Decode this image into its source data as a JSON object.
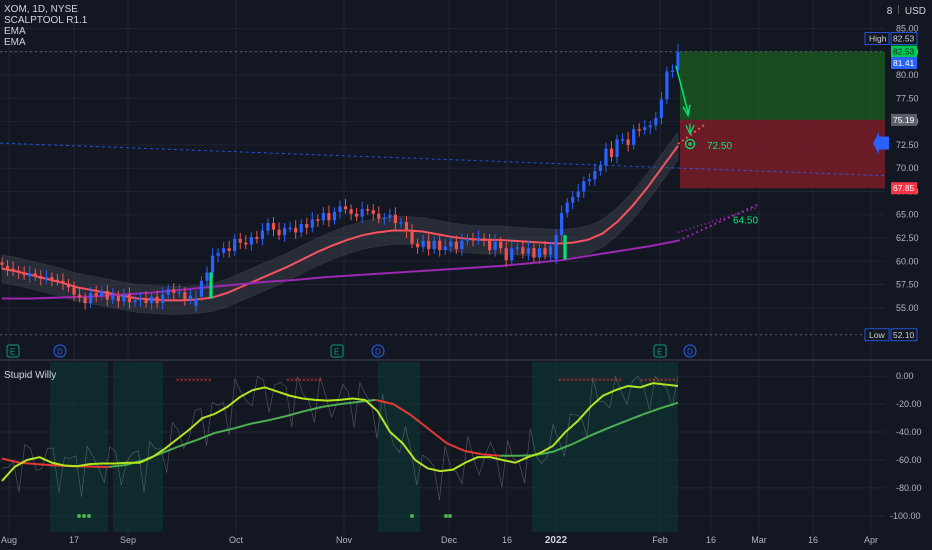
{
  "legend": {
    "symbol": "XOM, 1D, NYSE",
    "indicators": [
      "SCALPTOOL R1.1",
      "EMA",
      "EMA"
    ],
    "lower_title": "Stupid Willy"
  },
  "header_right": {
    "currency_num": "8",
    "currency": "USD"
  },
  "colors": {
    "bg": "#131722",
    "up": "#2962ff",
    "down": "#ef5350",
    "neutral": "#787b86",
    "ema_fast": "#f7525f",
    "ema_slow": "#9c27b0",
    "signal_green": "#00e676",
    "target_zone": "#1b5e20",
    "stop_zone": "#7f1d28"
  },
  "price_axis": {
    "ticks": [
      "85.00",
      "82.50",
      "80.00",
      "77.50",
      "75.00",
      "72.50",
      "70.00",
      "67.50",
      "65.00",
      "62.50",
      "60.00",
      "57.50",
      "55.00"
    ]
  },
  "osc_axis": {
    "ticks": [
      "0.00",
      "-20.00",
      "-40.00",
      "-60.00",
      "-80.00",
      "-100.00"
    ]
  },
  "time_axis": {
    "ticks": [
      "Aug",
      "17",
      "Sep",
      "Oct",
      "Nov",
      "Dec",
      "16",
      "2022",
      "Feb",
      "16",
      "Mar",
      "16",
      "Apr"
    ]
  },
  "price_labels": [
    {
      "text": "High",
      "value": "82.53",
      "style": "outline"
    },
    {
      "text": "",
      "value": "82.53",
      "style": "green"
    },
    {
      "text": "",
      "value": "81.41",
      "style": "blue"
    },
    {
      "text": "",
      "value": "75.19",
      "style": "gray"
    },
    {
      "text": "",
      "value": "67.85",
      "style": "red"
    },
    {
      "text": "Low",
      "value": "52.10",
      "style": "outline"
    }
  ],
  "annotations": [
    {
      "text": "72.50",
      "color": "#00e676"
    },
    {
      "text": "64.50",
      "color": "#00e676"
    }
  ],
  "event_markers": [
    "E",
    "D",
    "E",
    "D",
    "E",
    "D"
  ],
  "chart_data": {
    "type": "candlestick",
    "ylim": [
      51,
      87
    ],
    "osc_ylim": [
      -103,
      3
    ],
    "candles": {
      "close": [
        59.6,
        59.1,
        58.9,
        58.8,
        58.5,
        58.7,
        58.4,
        58.1,
        58.3,
        58.0,
        57.9,
        57.6,
        57.2,
        56.4,
        56.1,
        55.5,
        56.6,
        56.3,
        56.8,
        55.9,
        56.3,
        55.7,
        56.4,
        55.6,
        55.8,
        56.0,
        55.5,
        56.2,
        55.5,
        56.4,
        57.0,
        56.6,
        56.7,
        55.9,
        56.3,
        56.0,
        57.9,
        58.8,
        60.6,
        60.9,
        61.4,
        61.1,
        62.4,
        62.0,
        61.8,
        62.6,
        62.4,
        63.3,
        64.1,
        63.4,
        62.8,
        63.6,
        63.6,
        63.1,
        64.0,
        63.6,
        64.5,
        64.4,
        65.2,
        64.4,
        65.3,
        65.9,
        65.6,
        65.1,
        64.8,
        65.6,
        65.5,
        65.1,
        64.6,
        64.7,
        65.0,
        64.1,
        64.2,
        63.2,
        61.9,
        61.5,
        62.2,
        61.3,
        62.2,
        61.2,
        61.6,
        62.1,
        61.3,
        62.2,
        62.4,
        62.3,
        62.5,
        62.3,
        61.2,
        62.1,
        61.4,
        60.1,
        61.4,
        61.5,
        60.8,
        61.4,
        60.4,
        61.4,
        60.7,
        61.6,
        62.8,
        65.2,
        66.3,
        66.9,
        67.5,
        68.6,
        68.8,
        69.7,
        70.3,
        72.1,
        71.2,
        73.1,
        73.1,
        72.5,
        74.2,
        74.1,
        74.4,
        74.6,
        75.4,
        77.4,
        80.4,
        80.5,
        82.5
      ],
      "open": [
        59.9,
        59.5,
        59.2,
        59.0,
        58.8,
        58.4,
        58.7,
        58.4,
        58.1,
        58.3,
        58.0,
        57.9,
        57.6,
        57.2,
        56.4,
        56.1,
        55.5,
        56.6,
        56.3,
        56.8,
        55.9,
        56.3,
        55.7,
        56.4,
        55.6,
        55.8,
        56.0,
        55.5,
        56.2,
        55.5,
        56.4,
        57.0,
        56.6,
        56.7,
        55.9,
        55.2,
        56.2,
        57.9,
        58.8,
        60.6,
        60.9,
        61.4,
        61.1,
        62.4,
        62.0,
        61.8,
        62.6,
        62.4,
        63.3,
        64.1,
        63.4,
        62.8,
        63.6,
        63.6,
        63.1,
        64.0,
        63.6,
        64.5,
        64.4,
        65.2,
        64.4,
        65.3,
        65.9,
        65.6,
        65.1,
        64.8,
        65.6,
        65.5,
        65.1,
        64.6,
        64.7,
        65.0,
        64.1,
        64.2,
        63.2,
        61.9,
        61.5,
        62.2,
        61.3,
        62.2,
        61.2,
        61.6,
        62.1,
        61.3,
        62.2,
        62.4,
        62.3,
        62.5,
        62.3,
        61.2,
        62.1,
        61.4,
        60.1,
        61.4,
        61.5,
        60.8,
        61.4,
        60.4,
        61.4,
        60.7,
        60.2,
        62.8,
        65.2,
        66.3,
        66.9,
        67.5,
        68.6,
        68.8,
        69.7,
        70.3,
        72.1,
        71.2,
        73.1,
        73.1,
        72.5,
        74.2,
        74.1,
        74.4,
        74.6,
        75.4,
        77.4,
        80.4,
        80.5
      ]
    },
    "ema_fast": [
      59.2,
      58.9,
      58.5,
      58.1,
      57.7,
      57.2,
      56.9,
      56.6,
      56.3,
      56.0,
      55.9,
      55.8,
      55.8,
      55.9,
      56.1,
      56.6,
      57.3,
      58.0,
      58.7,
      59.4,
      60.2,
      61.0,
      61.7,
      62.3,
      62.8,
      63.1,
      63.3,
      63.3,
      63.2,
      62.9,
      62.6,
      62.4,
      62.3,
      62.3,
      62.2,
      62.1,
      62.0,
      61.9,
      62.0,
      62.3,
      63.0,
      64.3,
      66.0,
      68.0,
      70.2,
      72.4
    ],
    "ema_slow": [
      56.0,
      56.0,
      56.1,
      56.2,
      56.4,
      56.6,
      56.9,
      57.2,
      57.5,
      57.8,
      58.0,
      58.3,
      58.5,
      58.7,
      58.9,
      59.1,
      59.3,
      59.5,
      59.8,
      60.1,
      60.6,
      61.1,
      61.6,
      62.2
    ],
    "long_position": {
      "entry": 75.19,
      "target": 82.53,
      "stop": 67.85
    },
    "levels": [
      72.5,
      64.5
    ],
    "high": 82.53,
    "low": 52.1,
    "oscillator": {
      "name": "Stupid Willy",
      "fast": [
        -75.0,
        -65.0,
        -60.0,
        -58.0,
        -62.0,
        -64.0,
        -64.5,
        -63.0,
        -62.5,
        -62.5,
        -62.0,
        -62.0,
        -58.0,
        -52.0,
        -45.0,
        -38.0,
        -30.0,
        -27.0,
        -22.0,
        -15.0,
        -10.0,
        -8.0,
        -11.0,
        -14.0,
        -16.0,
        -17.0,
        -17.5,
        -17.0,
        -16.0,
        -17.0,
        -25.0,
        -40.0,
        -48.0,
        -60.0,
        -66.0,
        -68.0,
        -67.0,
        -62.0,
        -58.0,
        -58.0,
        -60.0,
        -62.0,
        -58.0,
        -55.0,
        -50.0,
        -40.0,
        -32.0,
        -22.0,
        -14.0,
        -10.0,
        -7.0,
        -8.0,
        -5.0,
        -6.0,
        -7.0
      ],
      "slow": [
        -59.0,
        -62.0,
        -63.0,
        -64.0,
        -64.5,
        -64.8,
        -65.0,
        -63.5,
        -60.0,
        -55.0,
        -50.0,
        -45.5,
        -40.5,
        -37.5,
        -34.0,
        -31.5,
        -28.5,
        -25.0,
        -22.0,
        -20.0,
        -18.5,
        -17.0,
        -20.0,
        -28.0,
        -38.0,
        -48.0,
        -53.5,
        -56.0,
        -57.0,
        -57.0,
        -56.5,
        -54.0,
        -49.0,
        -43.0,
        -37.5,
        -32.5,
        -27.5,
        -23.0,
        -19.0
      ]
    }
  }
}
